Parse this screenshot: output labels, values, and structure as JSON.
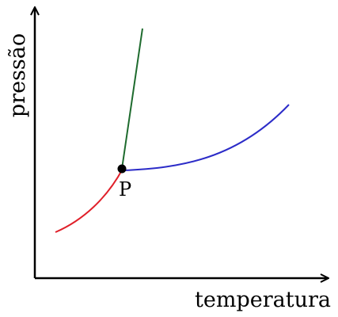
{
  "diagram": {
    "type": "phase-diagram",
    "x_axis_label": "temperatura",
    "y_axis_label": "pressão",
    "point_label": "P",
    "colors": {
      "axes": "#000000",
      "curve_red": "#e0202a",
      "curve_blue": "#2c2cc8",
      "curve_green": "#1e6b2e",
      "point": "#000000"
    }
  }
}
